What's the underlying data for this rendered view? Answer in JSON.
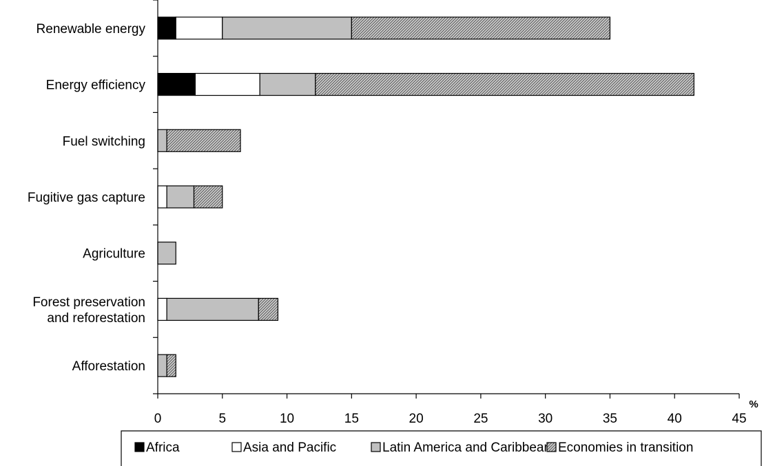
{
  "chart_data": {
    "type": "bar",
    "orientation": "horizontal",
    "stacked": true,
    "unit": "%",
    "categories": [
      "Renewable energy",
      "Energy efficiency",
      "Fuel switching",
      "Fugitive gas capture",
      "Agriculture",
      "Forest preservation and reforestation",
      "Afforestation"
    ],
    "category_lines": [
      [
        "Renewable energy"
      ],
      [
        "Energy efficiency"
      ],
      [
        "Fuel switching"
      ],
      [
        "Fugitive gas capture"
      ],
      [
        "Agriculture"
      ],
      [
        "Forest preservation",
        "and reforestation"
      ],
      [
        "Afforestation"
      ]
    ],
    "series": [
      {
        "name": "Africa",
        "values": [
          1.4,
          2.9,
          0,
          0,
          0,
          0,
          0
        ],
        "color": "#000000",
        "pattern": "solid"
      },
      {
        "name": "Asia and Pacific",
        "values": [
          3.6,
          5.0,
          0,
          0.7,
          0,
          0.7,
          0
        ],
        "color": "#ffffff",
        "pattern": "solid"
      },
      {
        "name": "Latin America and Caribbean",
        "values": [
          10.0,
          4.3,
          0.7,
          2.1,
          1.4,
          7.1,
          0.7
        ],
        "color": "#c0c0c0",
        "pattern": "solid"
      },
      {
        "name": "Economies in transition",
        "values": [
          20.0,
          29.3,
          5.7,
          2.2,
          0,
          1.5,
          0.7
        ],
        "color": "#a0a0a0",
        "pattern": "hatch"
      }
    ],
    "x_ticks": [
      "0",
      "5",
      "10",
      "15",
      "20",
      "25",
      "30",
      "35",
      "40",
      "45"
    ],
    "xlim": [
      0,
      45
    ],
    "grid": false,
    "legend_position": "bottom"
  }
}
